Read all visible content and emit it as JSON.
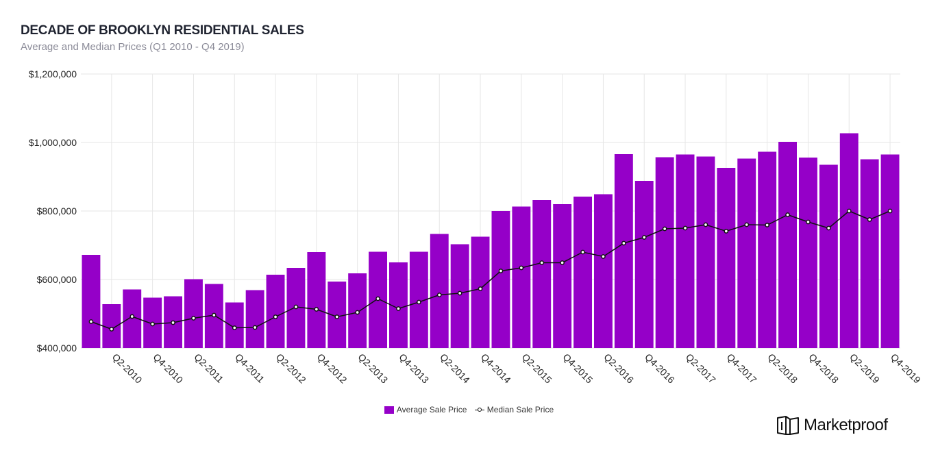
{
  "header": {
    "title": "DECADE OF BROOKLYN RESIDENTIAL SALES",
    "subtitle": "Average and Median Prices (Q1 2010 - Q4 2019)"
  },
  "legend": {
    "average_label": "Average Sale Price",
    "median_label": "Median Sale Price"
  },
  "brand": {
    "name": "Marketproof"
  },
  "colors": {
    "bar": "#9500c8",
    "line": "#111111",
    "grid": "#e6e6e6",
    "marker_fill": "#ffffff"
  },
  "chart_data": {
    "type": "bar",
    "title": "DECADE OF BROOKLYN RESIDENTIAL SALES",
    "subtitle": "Average and Median Prices (Q1 2010 - Q4 2019)",
    "categories": [
      "Q1-2010",
      "Q2-2010",
      "Q3-2010",
      "Q4-2010",
      "Q1-2011",
      "Q2-2011",
      "Q3-2011",
      "Q4-2011",
      "Q1-2012",
      "Q2-2012",
      "Q3-2012",
      "Q4-2012",
      "Q1-2013",
      "Q2-2013",
      "Q3-2013",
      "Q4-2013",
      "Q1-2014",
      "Q2-2014",
      "Q3-2014",
      "Q4-2014",
      "Q1-2015",
      "Q2-2015",
      "Q3-2015",
      "Q4-2015",
      "Q1-2016",
      "Q2-2016",
      "Q3-2016",
      "Q4-2016",
      "Q1-2017",
      "Q2-2017",
      "Q3-2017",
      "Q4-2017",
      "Q1-2018",
      "Q2-2018",
      "Q3-2018",
      "Q4-2018",
      "Q1-2019",
      "Q2-2019",
      "Q3-2019",
      "Q4-2019"
    ],
    "x_tick_labels": [
      "Q2-2010",
      "Q4-2010",
      "Q2-2011",
      "Q4-2011",
      "Q2-2012",
      "Q4-2012",
      "Q2-2013",
      "Q4-2013",
      "Q2-2014",
      "Q4-2014",
      "Q2-2015",
      "Q4-2015",
      "Q2-2016",
      "Q4-2016",
      "Q2-2017",
      "Q4-2017",
      "Q2-2018",
      "Q4-2018",
      "Q2-2019",
      "Q4-2019"
    ],
    "y_tick_labels": [
      "$400,000",
      "$600,000",
      "$800,000",
      "$1,000,000",
      "$1,200,000"
    ],
    "y_ticks": [
      400000,
      600000,
      800000,
      1000000,
      1200000
    ],
    "ylim": [
      400000,
      1200000
    ],
    "grid": true,
    "legend_position": "bottom-center",
    "series": [
      {
        "name": "Average Sale Price",
        "type": "bar",
        "values": [
          672000,
          528000,
          571000,
          547000,
          551000,
          601000,
          587000,
          533000,
          569000,
          614000,
          634000,
          680000,
          594000,
          618000,
          681000,
          650000,
          681000,
          733000,
          703000,
          725000,
          800000,
          813000,
          832000,
          820000,
          842000,
          849000,
          966000,
          888000,
          957000,
          965000,
          959000,
          926000,
          953000,
          973000,
          1002000,
          956000,
          935000,
          1027000,
          951000,
          965000
        ]
      },
      {
        "name": "Median Sale Price",
        "type": "line",
        "values": [
          477000,
          455000,
          492000,
          470000,
          474000,
          487000,
          496000,
          459000,
          460000,
          491000,
          520000,
          513000,
          491000,
          504000,
          544000,
          515000,
          534000,
          555000,
          560000,
          573000,
          625000,
          634000,
          649000,
          649000,
          680000,
          667000,
          706000,
          723000,
          748000,
          750000,
          760000,
          741000,
          760000,
          759000,
          789000,
          768000,
          750000,
          800000,
          775000,
          800000
        ]
      }
    ]
  }
}
